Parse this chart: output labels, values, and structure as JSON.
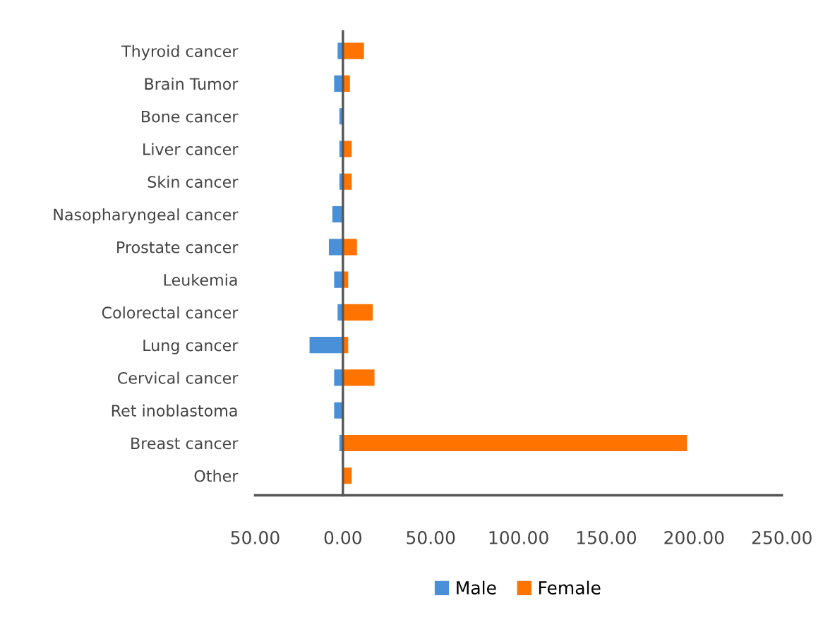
{
  "chart_data": {
    "type": "bar",
    "orientation": "horizontal",
    "categories": [
      "Thyroid cancer",
      "Brain Tumor",
      "Bone cancer",
      "Liver cancer",
      "Skin cancer",
      "Nasopharyngeal cancer",
      "Prostate cancer",
      "Leukemia",
      "Colorectal cancer",
      "Lung cancer",
      "Cervical cancer",
      "Ret inoblastoma",
      "Breast cancer",
      "Other"
    ],
    "series": [
      {
        "name": "Male",
        "color": "#4a90d9",
        "values": [
          -3,
          -5,
          -2,
          -2,
          -2,
          -6,
          -8,
          -5,
          -3,
          -19,
          -5,
          -5,
          -2,
          0
        ]
      },
      {
        "name": "Female",
        "color": "#ff7300",
        "values": [
          12,
          4,
          0,
          5,
          5,
          0,
          8,
          3,
          17,
          3,
          18,
          0,
          196,
          5
        ]
      }
    ],
    "xlim": [
      -50,
      250
    ],
    "xticks": [
      {
        "value": -50,
        "label": "50.00"
      },
      {
        "value": 0,
        "label": "0.00"
      },
      {
        "value": 50,
        "label": "50.00"
      },
      {
        "value": 100,
        "label": "100.00"
      },
      {
        "value": 150,
        "label": "150.00"
      },
      {
        "value": 200,
        "label": "200.00"
      },
      {
        "value": 250,
        "label": "250.00"
      }
    ],
    "stacked": true,
    "legend": "bottom"
  }
}
